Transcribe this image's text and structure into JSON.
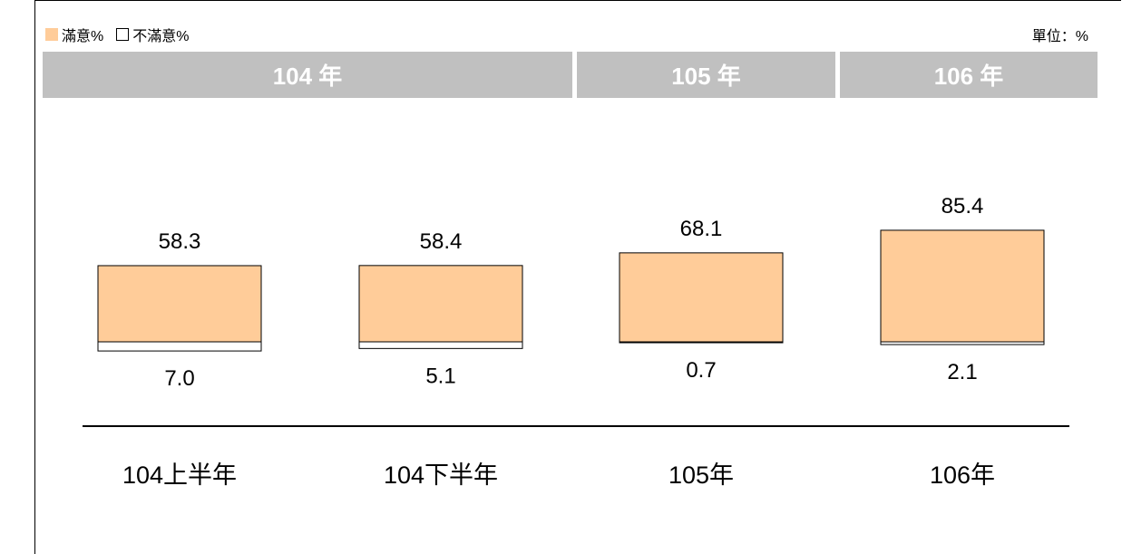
{
  "legend": {
    "satisfied_label": "滿意%",
    "unsatisfied_label": "不滿意%"
  },
  "unit_label": "單位：%",
  "year_headers": [
    "104 年",
    "105 年",
    "106 年"
  ],
  "colors": {
    "satisfied": "#FFCC99",
    "unsatisfied": "#FFFFFF",
    "header_band": "#C0C0C0",
    "header_text": "#FFFFFF"
  },
  "chart_data": {
    "type": "bar",
    "categories": [
      "104上半年",
      "104下半年",
      "105年",
      "106年"
    ],
    "series": [
      {
        "name": "滿意%",
        "values": [
          58.3,
          58.4,
          68.1,
          85.4
        ]
      },
      {
        "name": "不滿意%",
        "values": [
          7.0,
          5.1,
          0.7,
          2.1
        ]
      }
    ],
    "value_labels": {
      "satisfied": [
        "58.3",
        "58.4",
        "68.1",
        "85.4"
      ],
      "unsatisfied": [
        "7.0",
        "5.1",
        "0.7",
        "2.1"
      ]
    },
    "grid": false,
    "legend_position": "top-left"
  }
}
